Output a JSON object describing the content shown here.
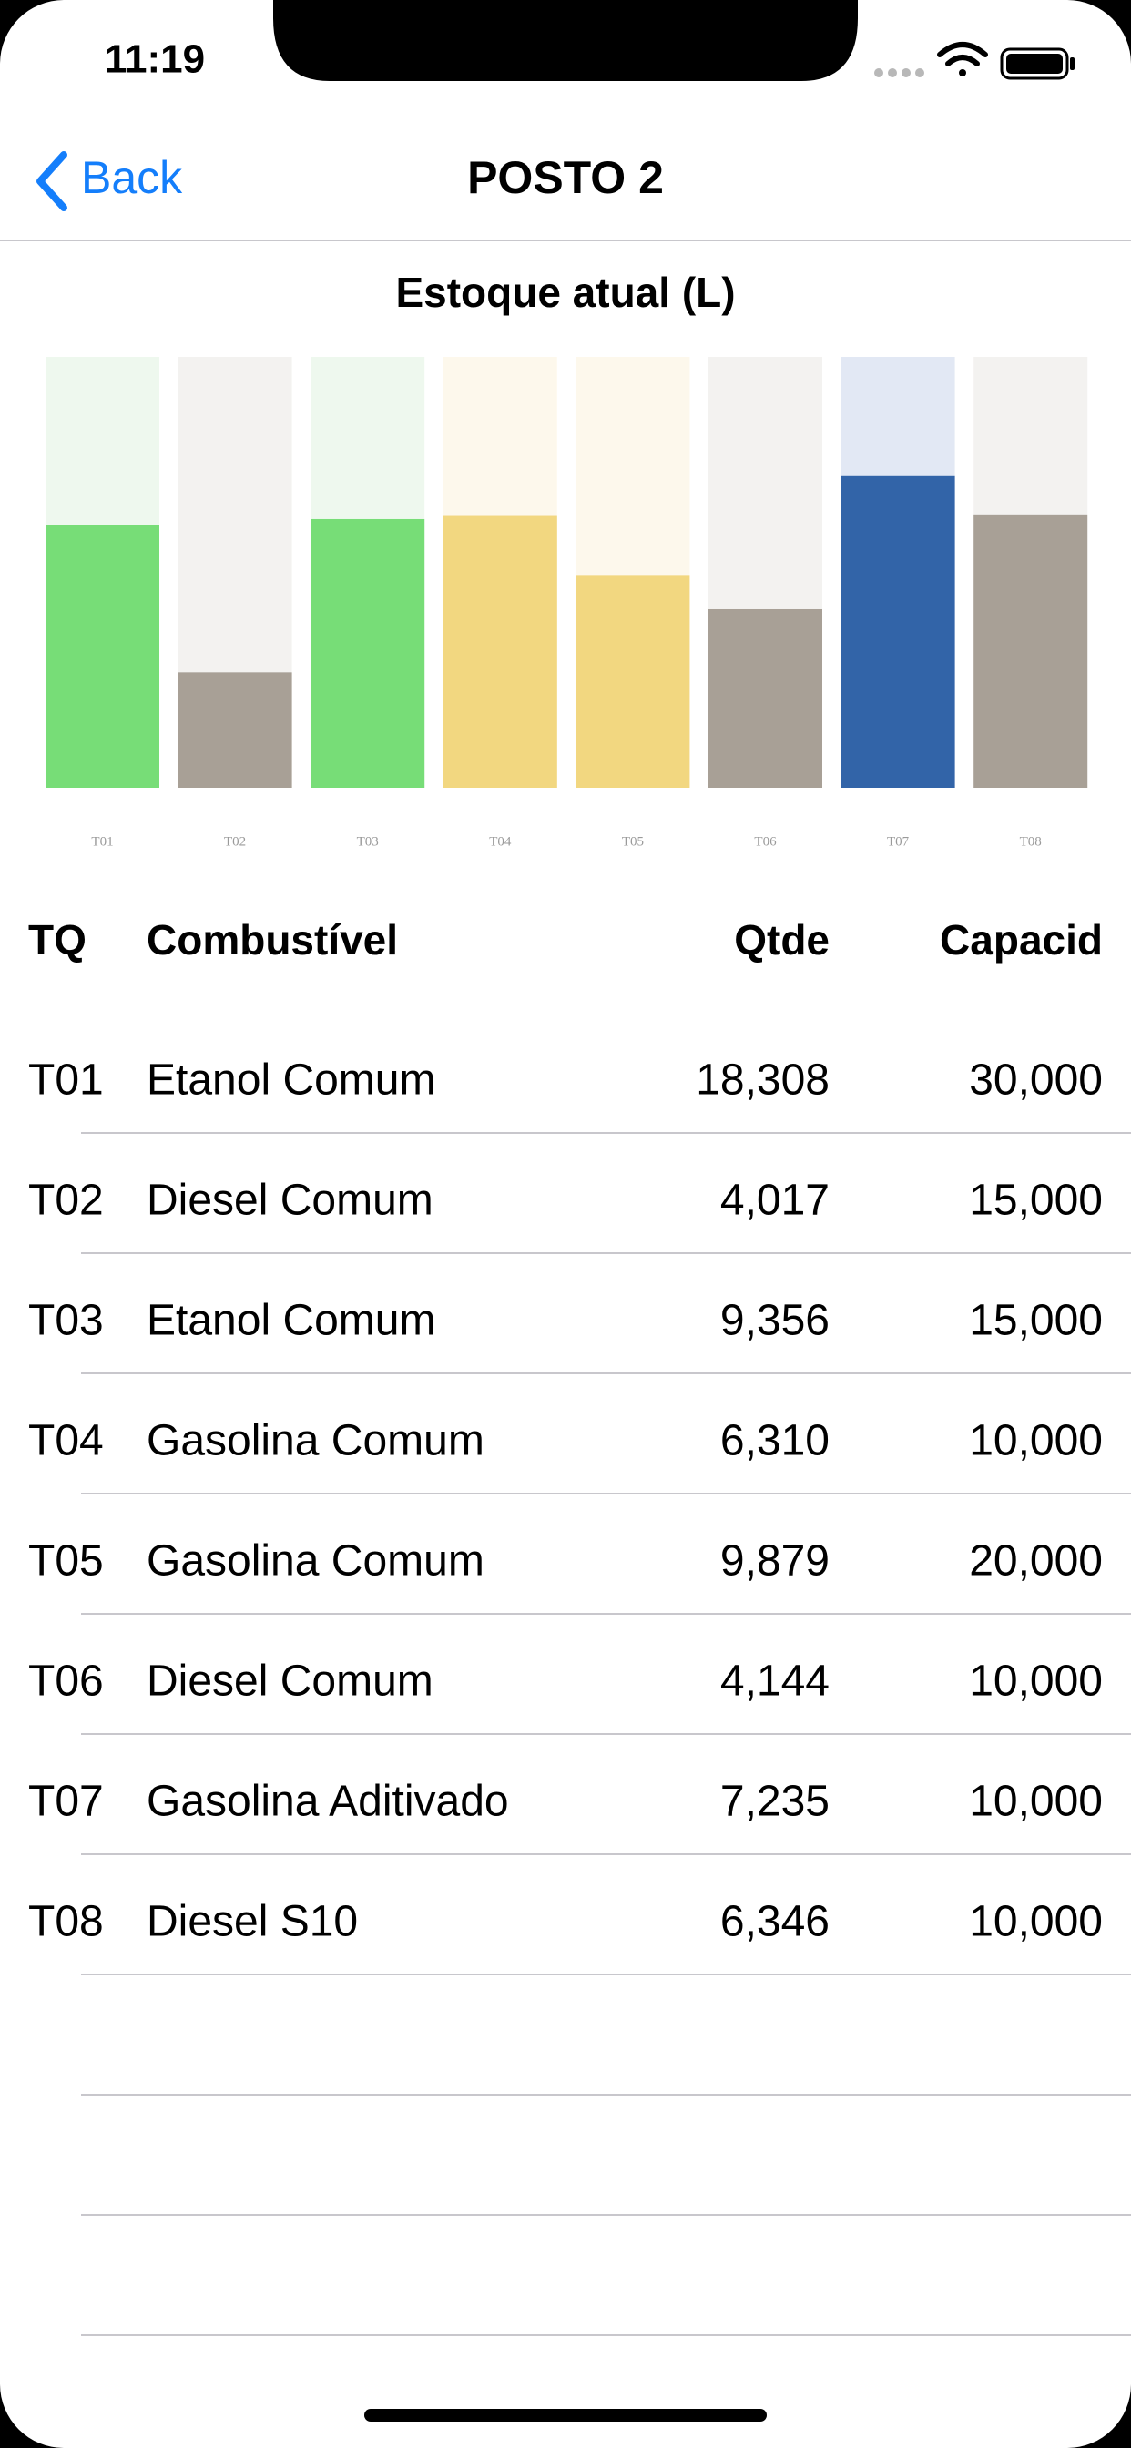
{
  "status_bar": {
    "time": "11:19"
  },
  "nav": {
    "back": "Back",
    "title": "POSTO 2"
  },
  "chart_data": {
    "type": "bar",
    "title": "Estoque atual (L)",
    "categories": [
      "T01",
      "T02",
      "T03",
      "T04",
      "T05",
      "T06",
      "T07",
      "T08"
    ],
    "values": [
      18308,
      4017,
      9356,
      6310,
      9879,
      4144,
      7235,
      6346
    ],
    "capacity": [
      30000,
      15000,
      15000,
      10000,
      20000,
      10000,
      10000,
      10000
    ],
    "colors": [
      "#77dd77",
      "#a8a096",
      "#77dd77",
      "#f2d780",
      "#f2d780",
      "#a8a096",
      "#3264a8",
      "#a8a096"
    ],
    "track_colors": [
      "#eef8ee",
      "#f3f2f0",
      "#eef8ee",
      "#fdf8ec",
      "#fdf8ec",
      "#f3f2f0",
      "#e2e8f4",
      "#f3f2f0"
    ]
  },
  "table": {
    "header": [
      "TQ",
      "Combustível",
      "Qtde",
      "Capacid"
    ],
    "rows": [
      [
        "T01",
        "Etanol Comum",
        "18,308",
        "30,000"
      ],
      [
        "T02",
        "Diesel Comum",
        "4,017",
        "15,000"
      ],
      [
        "T03",
        "Etanol Comum",
        "9,356",
        "15,000"
      ],
      [
        "T04",
        "Gasolina Comum",
        "6,310",
        "10,000"
      ],
      [
        "T05",
        "Gasolina Comum",
        "9,879",
        "20,000"
      ],
      [
        "T06",
        "Diesel Comum",
        "4,144",
        "10,000"
      ],
      [
        "T07",
        "Gasolina Aditivado",
        "7,235",
        "10,000"
      ],
      [
        "T08",
        "Diesel S10",
        "6,346",
        "10,000"
      ]
    ]
  }
}
